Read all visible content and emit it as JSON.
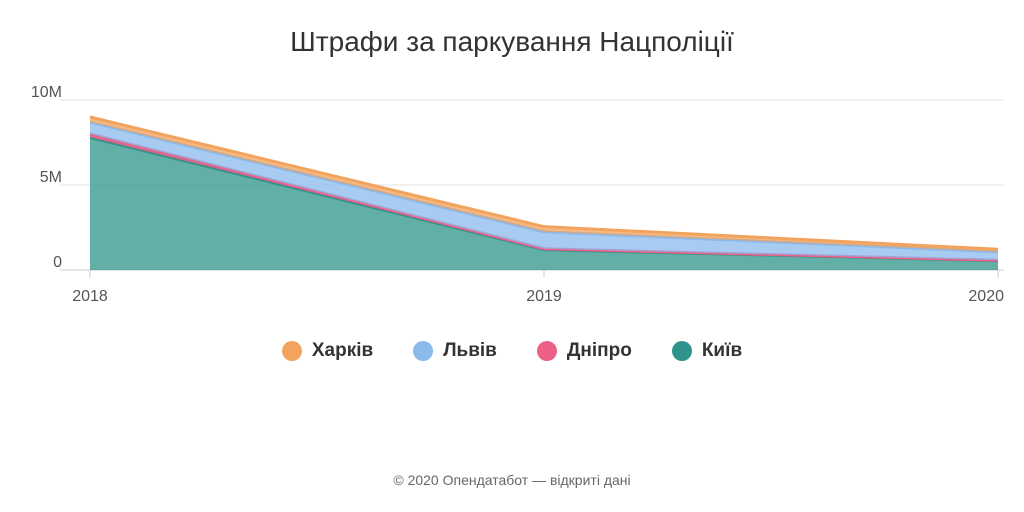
{
  "chart_data": {
    "type": "area",
    "stacked": true,
    "title": "Штрафи за паркування Нацполіції",
    "x": [
      "2018",
      "2019",
      "2020"
    ],
    "ylim": [
      0,
      10000000
    ],
    "yticks": [
      {
        "value": 0,
        "label": "0"
      },
      {
        "value": 5000000,
        "label": "5M"
      },
      {
        "value": 10000000,
        "label": "10M"
      }
    ],
    "grid": true,
    "legend_position": "bottom",
    "series": [
      {
        "name": "Київ",
        "values": [
          7800000,
          1200000,
          550000
        ],
        "color": "#2e948b"
      },
      {
        "name": "Дніпро",
        "values": [
          200000,
          50000,
          20000
        ],
        "color": "#ec5f86"
      },
      {
        "name": "Львів",
        "values": [
          700000,
          1000000,
          500000
        ],
        "color": "#8ab9ec"
      },
      {
        "name": "Харків",
        "values": [
          300000,
          300000,
          150000
        ],
        "color": "#f2a35e"
      }
    ]
  },
  "legend_order": [
    "Харків",
    "Львів",
    "Дніпро",
    "Київ"
  ],
  "footer": {
    "credit": "© 2020 Опендатабот — відкриті дані"
  }
}
